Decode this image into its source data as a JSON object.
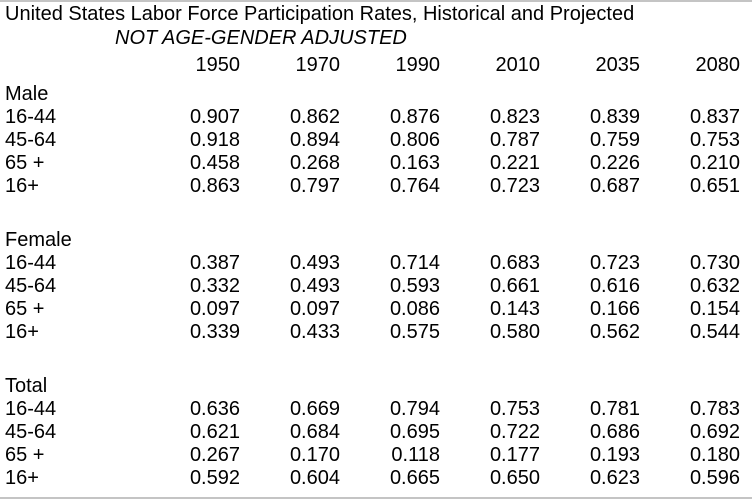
{
  "page": {
    "title": "United States Labor Force Participation Rates, Historical and Projected",
    "subtitle": "NOT AGE-GENDER ADJUSTED"
  },
  "table": {
    "year_columns": [
      "1950",
      "1970",
      "1990",
      "2010",
      "2035",
      "2080"
    ],
    "sections": [
      {
        "label": "Male",
        "rows": [
          {
            "label": "16-44",
            "values": [
              "0.907",
              "0.862",
              "0.876",
              "0.823",
              "0.839",
              "0.837"
            ]
          },
          {
            "label": "45-64",
            "values": [
              "0.918",
              "0.894",
              "0.806",
              "0.787",
              "0.759",
              "0.753"
            ]
          },
          {
            "label": "65 +",
            "values": [
              "0.458",
              "0.268",
              "0.163",
              "0.221",
              "0.226",
              "0.210"
            ]
          },
          {
            "label": "16+",
            "values": [
              "0.863",
              "0.797",
              "0.764",
              "0.723",
              "0.687",
              "0.651"
            ]
          }
        ]
      },
      {
        "label": "Female",
        "rows": [
          {
            "label": "16-44",
            "values": [
              "0.387",
              "0.493",
              "0.714",
              "0.683",
              "0.723",
              "0.730"
            ]
          },
          {
            "label": "45-64",
            "values": [
              "0.332",
              "0.493",
              "0.593",
              "0.661",
              "0.616",
              "0.632"
            ]
          },
          {
            "label": "65 +",
            "values": [
              "0.097",
              "0.097",
              "0.086",
              "0.143",
              "0.166",
              "0.154"
            ]
          },
          {
            "label": "16+",
            "values": [
              "0.339",
              "0.433",
              "0.575",
              "0.580",
              "0.562",
              "0.544"
            ]
          }
        ]
      },
      {
        "label": "Total",
        "rows": [
          {
            "label": "16-44",
            "values": [
              "0.636",
              "0.669",
              "0.794",
              "0.753",
              "0.781",
              "0.783"
            ]
          },
          {
            "label": "45-64",
            "values": [
              "0.621",
              "0.684",
              "0.695",
              "0.722",
              "0.686",
              "0.692"
            ]
          },
          {
            "label": "65 +",
            "values": [
              "0.267",
              "0.170",
              "0.118",
              "0.177",
              "0.193",
              "0.180"
            ]
          },
          {
            "label": "16+",
            "values": [
              "0.592",
              "0.604",
              "0.665",
              "0.650",
              "0.623",
              "0.596"
            ]
          }
        ]
      }
    ]
  },
  "chart_data": {
    "type": "table",
    "title": "United States Labor Force Participation Rates, Historical and Projected",
    "subtitle": "NOT AGE-GENDER ADJUSTED",
    "columns": [
      "1950",
      "1970",
      "1990",
      "2010",
      "2035",
      "2080"
    ],
    "row_groups": [
      {
        "group": "Male",
        "series": [
          {
            "name": "16-44",
            "values": [
              0.907,
              0.862,
              0.876,
              0.823,
              0.839,
              0.837
            ]
          },
          {
            "name": "45-64",
            "values": [
              0.918,
              0.894,
              0.806,
              0.787,
              0.759,
              0.753
            ]
          },
          {
            "name": "65 +",
            "values": [
              0.458,
              0.268,
              0.163,
              0.221,
              0.226,
              0.21
            ]
          },
          {
            "name": "16+",
            "values": [
              0.863,
              0.797,
              0.764,
              0.723,
              0.687,
              0.651
            ]
          }
        ]
      },
      {
        "group": "Female",
        "series": [
          {
            "name": "16-44",
            "values": [
              0.387,
              0.493,
              0.714,
              0.683,
              0.723,
              0.73
            ]
          },
          {
            "name": "45-64",
            "values": [
              0.332,
              0.493,
              0.593,
              0.661,
              0.616,
              0.632
            ]
          },
          {
            "name": "65 +",
            "values": [
              0.097,
              0.097,
              0.086,
              0.143,
              0.166,
              0.154
            ]
          },
          {
            "name": "16+",
            "values": [
              0.339,
              0.433,
              0.575,
              0.58,
              0.562,
              0.544
            ]
          }
        ]
      },
      {
        "group": "Total",
        "series": [
          {
            "name": "16-44",
            "values": [
              0.636,
              0.669,
              0.794,
              0.753,
              0.781,
              0.783
            ]
          },
          {
            "name": "45-64",
            "values": [
              0.621,
              0.684,
              0.695,
              0.722,
              0.686,
              0.692
            ]
          },
          {
            "name": "65 +",
            "values": [
              0.267,
              0.17,
              0.118,
              0.177,
              0.193,
              0.18
            ]
          },
          {
            "name": "16+",
            "values": [
              0.592,
              0.604,
              0.665,
              0.65,
              0.623,
              0.596
            ]
          }
        ]
      }
    ]
  }
}
